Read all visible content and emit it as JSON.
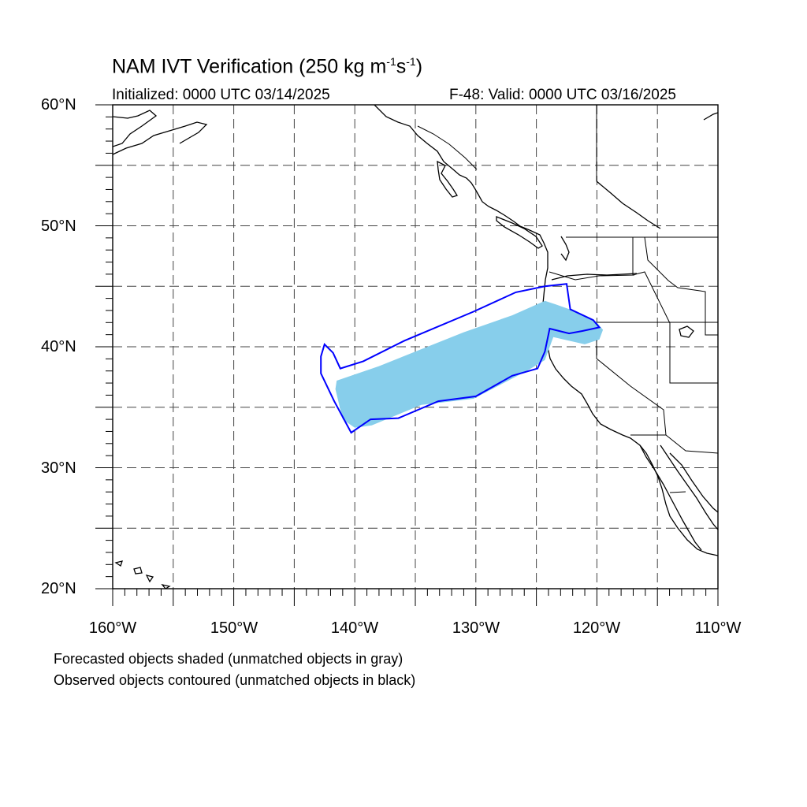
{
  "title": {
    "text": "NAM IVT Verification (250 kg m",
    "sup1": "-1",
    "mid": "s",
    "sup2": "-1",
    "end": ")"
  },
  "subtitle_left": "Initialized: 0000 UTC 03/14/2025",
  "subtitle_right": "F-48: Valid: 0000 UTC 03/16/2025",
  "lat_labels": [
    "60°N",
    "50°N",
    "40°N",
    "30°N",
    "20°N"
  ],
  "lon_labels": [
    "160°W",
    "150°W",
    "140°W",
    "130°W",
    "120°W",
    "110°W"
  ],
  "notes": [
    "Forecasted objects shaded (unmatched objects in gray)",
    "Observed objects contoured (unmatched objects in black)"
  ],
  "map": {
    "lon_range": [
      -160,
      -110
    ],
    "lat_range": [
      20,
      60
    ],
    "grid_spacing_deg": 5,
    "grid_style": "dashed",
    "forecast_color": "#87ceeb",
    "observed_color": "#0000ff"
  },
  "forecast_object": {
    "polygon": [
      [
        -141.5,
        37.2
      ],
      [
        -138,
        38.4
      ],
      [
        -135,
        39.6
      ],
      [
        -131,
        41.2
      ],
      [
        -127,
        42.6
      ],
      [
        -124.3,
        43.8
      ],
      [
        -123.4,
        43.5
      ],
      [
        -122,
        43
      ],
      [
        -120,
        42
      ],
      [
        -119.5,
        41.4
      ],
      [
        -119.8,
        40.6
      ],
      [
        -121,
        40.2
      ],
      [
        -123.6,
        40.8
      ],
      [
        -124.3,
        38.9
      ],
      [
        -125.8,
        38
      ],
      [
        -130.2,
        35.7
      ],
      [
        -134.5,
        35.2
      ],
      [
        -138.6,
        33.5
      ],
      [
        -140,
        33.3
      ],
      [
        -141,
        34
      ],
      [
        -141.6,
        36.5
      ]
    ]
  },
  "observed_object": {
    "polygon": [
      [
        -142.5,
        40.2
      ],
      [
        -141.8,
        39.5
      ],
      [
        -141.2,
        38.2
      ],
      [
        -139.3,
        38.8
      ],
      [
        -135.9,
        40.5
      ],
      [
        -130.2,
        42.9
      ],
      [
        -126.7,
        44.5
      ],
      [
        -124.3,
        45
      ],
      [
        -122.5,
        45.2
      ],
      [
        -122.2,
        43.1
      ],
      [
        -120.3,
        42.2
      ],
      [
        -119.8,
        41.6
      ],
      [
        -121.2,
        41.3
      ],
      [
        -122.3,
        41.1
      ],
      [
        -123.9,
        41.5
      ],
      [
        -124.3,
        39.6
      ],
      [
        -124.9,
        38.2
      ],
      [
        -127,
        37.6
      ],
      [
        -130,
        35.9
      ],
      [
        -133.1,
        35.5
      ],
      [
        -136.4,
        34.1
      ],
      [
        -138.7,
        34
      ],
      [
        -140.3,
        32.9
      ],
      [
        -141.7,
        35.5
      ],
      [
        -142.8,
        37.8
      ],
      [
        -142.8,
        39.2
      ]
    ]
  }
}
